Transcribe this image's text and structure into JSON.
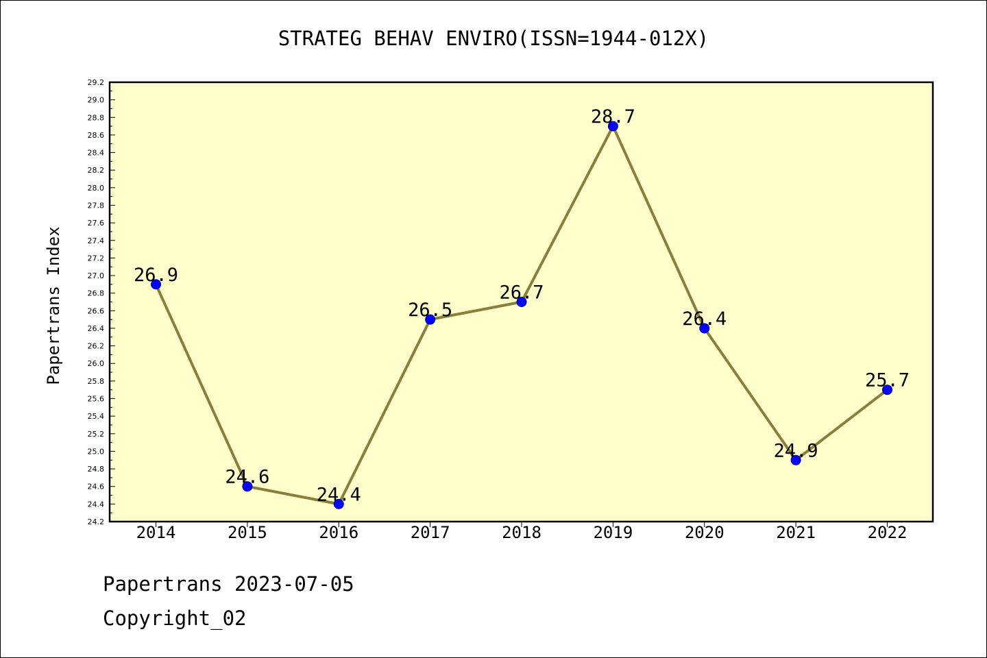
{
  "footer": {
    "line1": "Papertrans 2023-07-05",
    "line2": "Copyright_02"
  },
  "colors": {
    "plot_background": "#ffffcc",
    "line": "#8b7d3a",
    "marker": "#0000ff",
    "marker_edge": "#00008b"
  },
  "chart_data": {
    "type": "line",
    "title": "STRATEG BEHAV ENVIRO(ISSN=1944-012X)",
    "xlabel": "",
    "ylabel": "Papertrans Index",
    "categories": [
      "2014",
      "2015",
      "2016",
      "2017",
      "2018",
      "2019",
      "2020",
      "2021",
      "2022"
    ],
    "series": [
      {
        "values": [
          26.9,
          24.6,
          24.4,
          26.5,
          26.7,
          28.7,
          26.4,
          24.9,
          25.7
        ],
        "labels": [
          "26.9",
          "24.6",
          "24.4",
          "26.5",
          "26.7",
          "28.7",
          "26.4",
          "24.9",
          "25.7"
        ]
      }
    ],
    "ylim": [
      24.2,
      29.2
    ],
    "ytick_step": 0.2,
    "grid": false,
    "legend": "none"
  }
}
